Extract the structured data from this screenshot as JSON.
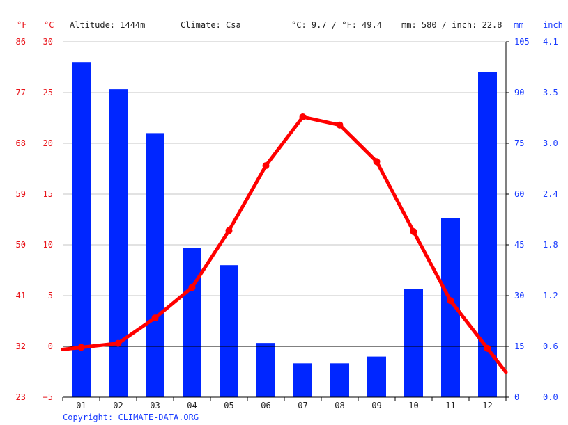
{
  "header": {
    "unit_f": "°F",
    "unit_c": "°C",
    "altitude": "Altitude: 1444m",
    "climate": "Climate: Csa",
    "temp_avg": "°C: 9.7 / °F: 49.4",
    "precip_total": "mm: 580 / inch: 22.8",
    "unit_mm": "mm",
    "unit_inch": "inch"
  },
  "footer": {
    "copyright": "Copyright: CLIMATE-DATA.ORG"
  },
  "colors": {
    "temperature": "#ff0000",
    "precipitation": "#0026ff",
    "left_axis": "#e8141a",
    "right_axis": "#1a3cff"
  },
  "chart_data": {
    "type": "bar",
    "categories": [
      "01",
      "02",
      "03",
      "04",
      "05",
      "06",
      "07",
      "08",
      "09",
      "10",
      "11",
      "12"
    ],
    "series": [
      {
        "type": "bar",
        "axis": "mm",
        "values": [
          99,
          91,
          78,
          44,
          39,
          16,
          10,
          10,
          12,
          32,
          53,
          96
        ]
      },
      {
        "type": "line",
        "axis": "°C",
        "values": [
          -0.1,
          0.3,
          2.8,
          5.8,
          11.4,
          17.8,
          22.6,
          21.8,
          18.2,
          11.3,
          4.5,
          -0.2
        ]
      }
    ],
    "axes": {
      "celsius": {
        "ylim": [
          -5,
          30
        ],
        "ticks": [
          "30",
          "25",
          "20",
          "15",
          "10",
          "5",
          "0",
          "−5"
        ]
      },
      "fahrenheit": {
        "ticks": [
          "86",
          "77",
          "68",
          "59",
          "50",
          "41",
          "32",
          "23"
        ]
      },
      "mm": {
        "ylim": [
          0,
          105
        ],
        "ticks": [
          "105",
          "90",
          "75",
          "60",
          "45",
          "30",
          "15",
          "0"
        ]
      },
      "inch": {
        "ticks": [
          "4.1",
          "3.5",
          "3.0",
          "2.4",
          "1.8",
          "1.2",
          "0.6",
          "0.0"
        ]
      }
    },
    "grid": true
  }
}
